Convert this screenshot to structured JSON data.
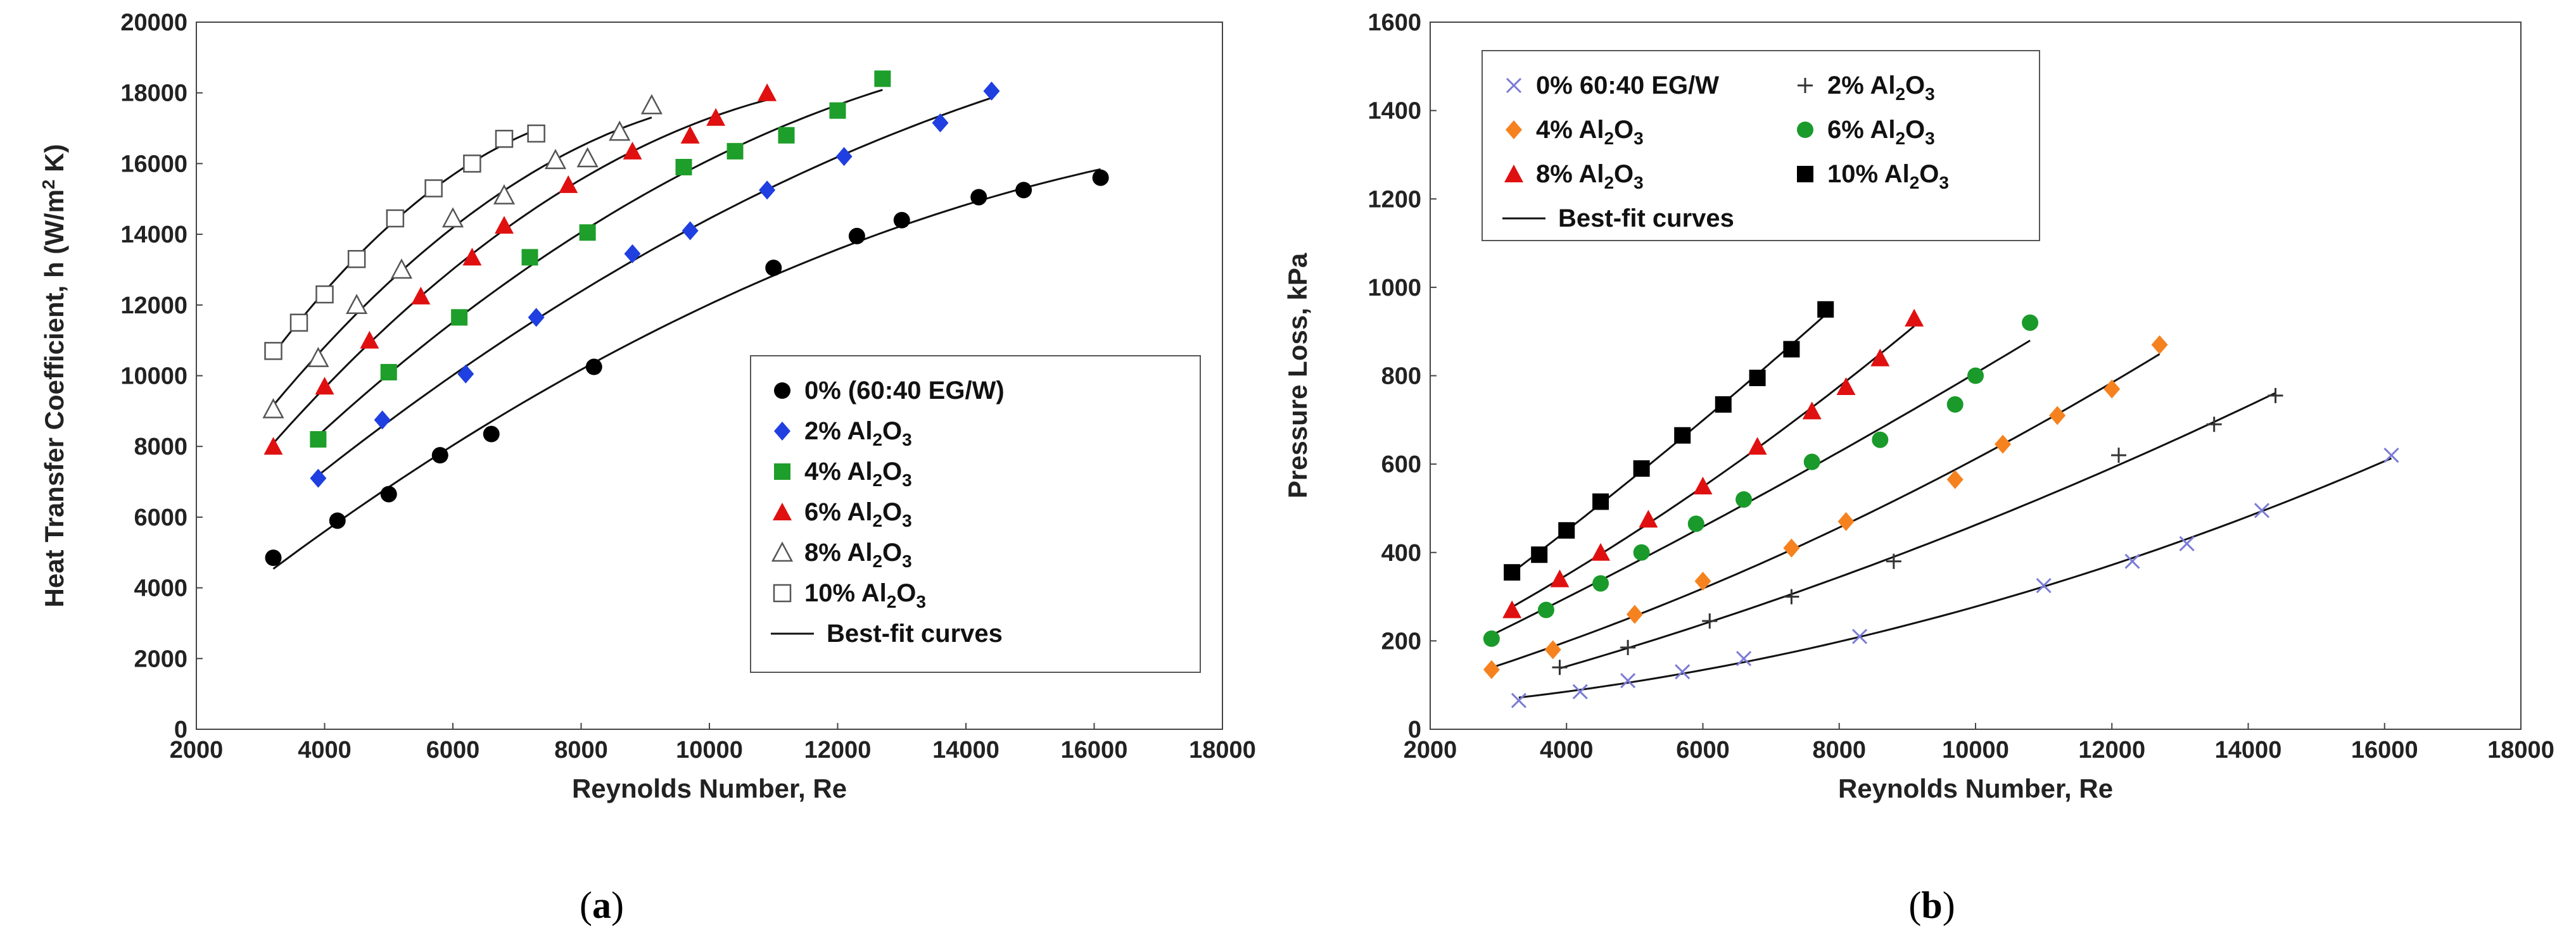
{
  "chart_data": [
    {
      "type": "scatter",
      "panel_label": {
        "open": "(",
        "letter": "a",
        "close": ")"
      },
      "xlabel": "Reynolds Number, Re",
      "ylabel": "Heat Transfer Coefficient, h (W/m² K)",
      "ylabel_parts": {
        "pre": "Heat Transfer Coefficient, h (W/m",
        "sup": "2",
        "post": " K)"
      },
      "xlim": [
        2000,
        18000
      ],
      "ylim": [
        0,
        20000
      ],
      "xticks": [
        2000,
        4000,
        6000,
        8000,
        10000,
        12000,
        14000,
        16000,
        18000
      ],
      "yticks": [
        0,
        2000,
        4000,
        6000,
        8000,
        10000,
        12000,
        14000,
        16000,
        18000,
        20000
      ],
      "legend_position": "lower-right",
      "best_fit_label": "Best-fit curves",
      "series": [
        {
          "name": "0% (60:40 EG/W)",
          "label": {
            "pct": "0% (60:40 EG/W)",
            "chem": ""
          },
          "marker": "circle",
          "color": "#000000",
          "x": [
            3200,
            4200,
            5000,
            5800,
            6600,
            8200,
            11000,
            12300,
            13000,
            14200,
            14900,
            16100
          ],
          "y": [
            4850,
            5900,
            6650,
            7750,
            8350,
            10250,
            13050,
            13950,
            14400,
            15050,
            15250,
            15600
          ]
        },
        {
          "name": "2% Al2O3",
          "label": {
            "pct": "2%",
            "chem": "Al2O3"
          },
          "marker": "diamond",
          "color": "#1f3fe0",
          "x": [
            3900,
            4900,
            6200,
            7300,
            8800,
            9700,
            10900,
            12100,
            13600,
            14400
          ],
          "y": [
            7100,
            8750,
            10050,
            11650,
            13450,
            14100,
            15250,
            16200,
            17150,
            18050
          ]
        },
        {
          "name": "4% Al2O3",
          "label": {
            "pct": "4%",
            "chem": "Al2O3"
          },
          "marker": "square",
          "color": "#1e9e2a",
          "x": [
            3900,
            5000,
            6100,
            7200,
            8100,
            9600,
            10400,
            11200,
            12000,
            12700
          ],
          "y": [
            8200,
            10100,
            11650,
            13350,
            14050,
            15900,
            16350,
            16800,
            17500,
            18400
          ]
        },
        {
          "name": "6% Al2O3",
          "label": {
            "pct": "6%",
            "chem": "Al2O3"
          },
          "marker": "triangle",
          "color": "#e01010",
          "x": [
            3200,
            4000,
            4700,
            5500,
            6300,
            6800,
            7800,
            8800,
            9700,
            10100,
            10900
          ],
          "y": [
            8000,
            9700,
            11000,
            12250,
            13350,
            14250,
            15400,
            16350,
            16800,
            17300,
            18000
          ]
        },
        {
          "name": "8% Al2O3",
          "label": {
            "pct": "8%",
            "chem": "Al2O3"
          },
          "marker": "triangle-open",
          "color": "#555555",
          "x": [
            3200,
            3900,
            4500,
            5200,
            6000,
            6800,
            7600,
            8100,
            8600,
            9100
          ],
          "y": [
            9050,
            10500,
            12000,
            13000,
            14450,
            15100,
            16100,
            16150,
            16900,
            17650
          ]
        },
        {
          "name": "10% Al2O3",
          "label": {
            "pct": "10%",
            "chem": "Al2O3"
          },
          "marker": "square-open",
          "color": "#555555",
          "x": [
            3200,
            3600,
            4000,
            4500,
            5100,
            5700,
            6300,
            6800,
            7300
          ],
          "y": [
            10700,
            11500,
            12300,
            13300,
            14450,
            15300,
            16000,
            16700,
            16850
          ]
        }
      ]
    },
    {
      "type": "scatter",
      "panel_label": {
        "open": "(",
        "letter": "b",
        "close": ")"
      },
      "xlabel": "Reynolds Number, Re",
      "ylabel": "Pressure Loss, kPa",
      "xlim": [
        2000,
        18000
      ],
      "ylim": [
        0,
        1600
      ],
      "xticks": [
        2000,
        4000,
        6000,
        8000,
        10000,
        12000,
        14000,
        16000,
        18000
      ],
      "yticks": [
        0,
        200,
        400,
        600,
        800,
        1000,
        1200,
        1400,
        1600
      ],
      "legend_position": "top-left",
      "best_fit_label": "Best-fit curves",
      "series": [
        {
          "name": "0% 60:40 EG/W",
          "label": {
            "pct": "0% 60:40 EG/W",
            "chem": ""
          },
          "marker": "x",
          "color": "#7b7bd6",
          "x": [
            3300,
            4200,
            4900,
            5700,
            6600,
            8300,
            11000,
            12300,
            13100,
            14200,
            16100
          ],
          "y": [
            65,
            85,
            110,
            130,
            160,
            210,
            325,
            380,
            420,
            495,
            620
          ]
        },
        {
          "name": "2% Al2O3",
          "label": {
            "pct": "2%",
            "chem": "Al2O3"
          },
          "marker": "plus",
          "color": "#333333",
          "x": [
            3900,
            4900,
            6100,
            7300,
            8800,
            12100,
            13500,
            14400
          ],
          "y": [
            140,
            185,
            245,
            300,
            380,
            620,
            690,
            755
          ]
        },
        {
          "name": "4% Al2O3",
          "label": {
            "pct": "4%",
            "chem": "Al2O3"
          },
          "marker": "diamond",
          "color": "#f5821f",
          "x": [
            2900,
            3800,
            5000,
            6000,
            7300,
            8100,
            9700,
            10400,
            11200,
            12000,
            12700
          ],
          "y": [
            135,
            180,
            260,
            335,
            410,
            470,
            565,
            645,
            710,
            770,
            870
          ]
        },
        {
          "name": "6% Al2O3",
          "label": {
            "pct": "6%",
            "chem": "Al2O3"
          },
          "marker": "circle",
          "color": "#1a9a2a",
          "x": [
            2900,
            3700,
            4500,
            5100,
            5900,
            6600,
            7600,
            8600,
            9700,
            10000,
            10800
          ],
          "y": [
            205,
            270,
            330,
            400,
            465,
            520,
            605,
            655,
            735,
            800,
            920
          ]
        },
        {
          "name": "8% Al2O3",
          "label": {
            "pct": "8%",
            "chem": "Al2O3"
          },
          "marker": "triangle",
          "color": "#e01010",
          "x": [
            3200,
            3900,
            4500,
            5200,
            6000,
            6800,
            7600,
            8100,
            8600,
            9100
          ],
          "y": [
            270,
            340,
            400,
            475,
            550,
            640,
            720,
            775,
            840,
            930
          ]
        },
        {
          "name": "10% Al2O3",
          "label": {
            "pct": "10%",
            "chem": "Al2O3"
          },
          "marker": "square",
          "color": "#000000",
          "x": [
            3200,
            3600,
            4000,
            4500,
            5100,
            5700,
            6300,
            6800,
            7300,
            7800
          ],
          "y": [
            355,
            395,
            450,
            515,
            590,
            665,
            735,
            795,
            860,
            950
          ]
        }
      ]
    }
  ]
}
